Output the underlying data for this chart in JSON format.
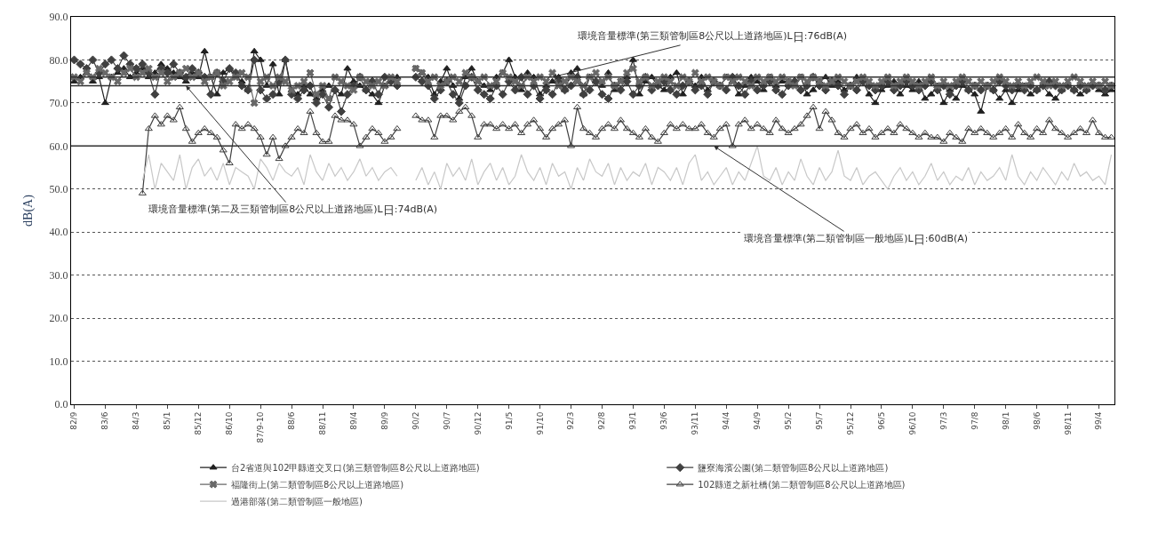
{
  "chart_data": {
    "type": "line",
    "ylabel": "dB(A)",
    "categories": [
      "82/9",
      null,
      null,
      null,
      null,
      "83/6",
      null,
      null,
      null,
      null,
      "84/3",
      null,
      null,
      null,
      null,
      "85/1",
      null,
      null,
      null,
      null,
      "85/12",
      null,
      null,
      null,
      null,
      "86/10",
      null,
      null,
      null,
      null,
      "87/9-10",
      null,
      null,
      null,
      null,
      "88/6",
      null,
      null,
      null,
      null,
      "88/11",
      null,
      null,
      null,
      null,
      "89/4",
      null,
      null,
      null,
      null,
      "89/9",
      null,
      null,
      null,
      null,
      "90/2",
      null,
      null,
      null,
      null,
      "90/7",
      null,
      null,
      null,
      null,
      "90/12",
      null,
      null,
      null,
      null,
      "91/5",
      null,
      null,
      null,
      null,
      "91/10",
      null,
      null,
      null,
      null,
      "92/3",
      null,
      null,
      null,
      null,
      "92/8",
      null,
      null,
      null,
      null,
      "93/1",
      null,
      null,
      null,
      null,
      "93/6",
      null,
      null,
      null,
      null,
      "93/11",
      null,
      null,
      null,
      null,
      "94/4",
      null,
      null,
      null,
      null,
      "94/9",
      null,
      null,
      null,
      null,
      "95/2",
      null,
      null,
      null,
      null,
      "95/7",
      null,
      null,
      null,
      null,
      "95/12",
      null,
      null,
      null,
      null,
      "96/5",
      null,
      null,
      null,
      null,
      "96/10",
      null,
      null,
      null,
      null,
      "97/3",
      null,
      null,
      null,
      null,
      "97/8",
      null,
      null,
      null,
      null,
      "98/1",
      null,
      null,
      null,
      null,
      "98/6",
      null,
      null,
      null,
      null,
      "98/11",
      null,
      null,
      null,
      null,
      "99/4",
      null,
      null
    ],
    "ylim": [
      0,
      90
    ],
    "yticks": [
      {
        "value": 0,
        "label": "0.0"
      },
      {
        "value": 10,
        "label": "10.0"
      },
      {
        "value": 20,
        "label": "20.0"
      },
      {
        "value": 30,
        "label": "30.0"
      },
      {
        "value": 40,
        "label": "40.0"
      },
      {
        "value": 50,
        "label": "50.0"
      },
      {
        "value": 60,
        "label": "60.0"
      },
      {
        "value": 70,
        "label": "70.0"
      },
      {
        "value": 80,
        "label": "80.0"
      },
      {
        "value": 90,
        "label": "90.0"
      }
    ],
    "grid": "y",
    "legend": "bottom",
    "series": [
      {
        "name": "台2省道與102甲縣道交叉口(第三類管制區8公尺以上道路地區)",
        "color": "#202020",
        "marker": "triangle",
        "values": [
          75,
          76,
          77,
          75,
          76,
          70,
          76,
          77,
          78,
          76,
          77,
          78,
          76,
          77,
          79,
          78,
          77,
          76,
          75,
          77,
          76,
          82,
          76,
          72,
          77,
          78,
          76,
          75,
          73,
          82,
          80,
          74,
          79,
          72,
          80,
          73,
          72,
          74,
          72,
          71,
          73,
          74,
          73,
          72,
          78,
          75,
          74,
          73,
          72,
          70,
          74,
          75,
          76,
          null,
          null,
          78,
          77,
          76,
          72,
          75,
          78,
          74,
          71,
          76,
          78,
          75,
          74,
          73,
          76,
          77,
          80,
          76,
          73,
          77,
          76,
          72,
          74,
          75,
          76,
          73,
          77,
          78,
          72,
          76,
          75,
          74,
          77,
          73,
          75,
          76,
          80,
          72,
          75,
          76,
          74,
          73,
          76,
          77,
          72,
          75,
          74,
          76,
          73,
          75,
          74,
          76,
          75,
          72,
          74,
          76,
          75,
          73,
          76,
          74,
          75,
          75,
          74,
          76,
          72,
          73,
          75,
          76,
          74,
          75,
          73,
          74,
          76,
          75,
          72,
          70,
          73,
          74,
          75,
          72,
          74,
          73,
          75,
          71,
          72,
          74,
          70,
          73,
          71,
          74,
          73,
          72,
          68,
          74,
          73,
          71,
          73,
          70,
          73,
          74,
          72,
          73,
          74,
          72,
          71,
          73,
          74,
          73,
          72,
          73,
          74,
          73,
          72,
          73
        ]
      },
      {
        "name": "鹽寮海濱公園(第二類管制區8公尺以上道路地區)",
        "color": "#404040",
        "marker": "diamond",
        "values": [
          80,
          79,
          78,
          80,
          77,
          79,
          80,
          78,
          81,
          79,
          78,
          79,
          77,
          72,
          78,
          77,
          79,
          77,
          76,
          78,
          77,
          76,
          72,
          77,
          75,
          78,
          77,
          74,
          73,
          80,
          73,
          71,
          72,
          75,
          80,
          72,
          71,
          73,
          74,
          70,
          72,
          69,
          73,
          68,
          72,
          74,
          76,
          73,
          75,
          72,
          76,
          75,
          74,
          null,
          null,
          76,
          75,
          74,
          71,
          73,
          75,
          72,
          70,
          74,
          76,
          73,
          72,
          71,
          74,
          72,
          75,
          73,
          76,
          72,
          74,
          71,
          73,
          72,
          75,
          73,
          74,
          76,
          72,
          73,
          75,
          72,
          71,
          74,
          73,
          75,
          72,
          74,
          76,
          73,
          74,
          75,
          73,
          72,
          74,
          75,
          73,
          74,
          72,
          75,
          74,
          73,
          76,
          74,
          72,
          75,
          73,
          74,
          75,
          73,
          72,
          74,
          75,
          73,
          74,
          76,
          74,
          73,
          75,
          74,
          72,
          74,
          73,
          75,
          74,
          73,
          74,
          75,
          73,
          74,
          75,
          74,
          73,
          74,
          75,
          73,
          74,
          72,
          74,
          75,
          73,
          74,
          73,
          74,
          73,
          75,
          74,
          73,
          74,
          73,
          74,
          73,
          74,
          75,
          74,
          73,
          74,
          73,
          74,
          73,
          74,
          74,
          73,
          74
        ]
      },
      {
        "name": "福隆街上(第二類管制區8公尺以上道路地區)",
        "color": "#686868",
        "marker": "cross",
        "values": [
          76,
          75,
          77,
          76,
          78,
          77,
          76,
          75,
          77,
          78,
          76,
          77,
          78,
          76,
          77,
          75,
          76,
          77,
          78,
          76,
          77,
          75,
          76,
          77,
          74,
          75,
          76,
          77,
          76,
          70,
          75,
          76,
          74,
          76,
          75,
          73,
          74,
          75,
          77,
          72,
          74,
          71,
          76,
          75,
          74,
          73,
          76,
          75,
          74,
          75,
          74,
          76,
          75,
          null,
          null,
          78,
          77,
          75,
          76,
          74,
          75,
          76,
          75,
          77,
          76,
          75,
          76,
          74,
          75,
          77,
          76,
          75,
          74,
          76,
          75,
          76,
          75,
          77,
          74,
          75,
          76,
          75,
          74,
          76,
          77,
          75,
          76,
          74,
          75,
          77,
          78,
          75,
          76,
          74,
          75,
          76,
          75,
          74,
          76,
          75,
          77,
          75,
          76,
          75,
          74,
          76,
          75,
          76,
          75,
          74,
          76,
          75,
          76,
          75,
          76,
          75,
          74,
          76,
          75,
          76,
          75,
          74,
          75,
          76,
          75,
          74,
          75,
          76,
          75,
          74,
          75,
          76,
          74,
          75,
          76,
          75,
          74,
          75,
          76,
          74,
          75,
          74,
          75,
          76,
          75,
          74,
          75,
          74,
          75,
          76,
          75,
          74,
          75,
          74,
          75,
          76,
          75,
          74,
          75,
          74,
          75,
          76,
          75,
          74,
          75,
          74,
          75,
          74
        ]
      },
      {
        "name": "102縣道之新社橋(第二類管制區8公尺以上道路地區)",
        "color": "#404040",
        "marker": "triangle-open",
        "values": [
          null,
          null,
          null,
          null,
          null,
          null,
          null,
          null,
          null,
          null,
          null,
          49,
          64,
          67,
          65,
          67,
          66,
          69,
          64,
          61,
          63,
          64,
          63,
          62,
          59,
          56,
          65,
          64,
          65,
          64,
          62,
          58,
          62,
          57,
          60,
          62,
          64,
          63,
          68,
          63,
          61,
          61,
          67,
          66,
          66,
          65,
          60,
          62,
          64,
          63,
          61,
          62,
          64,
          null,
          null,
          67,
          66,
          66,
          62,
          67,
          67,
          66,
          68,
          69,
          67,
          62,
          65,
          65,
          64,
          65,
          64,
          65,
          63,
          65,
          66,
          64,
          62,
          64,
          65,
          66,
          60,
          69,
          64,
          63,
          62,
          64,
          65,
          64,
          66,
          64,
          63,
          62,
          64,
          62,
          61,
          63,
          65,
          64,
          65,
          64,
          64,
          65,
          63,
          62,
          64,
          65,
          60,
          65,
          66,
          64,
          65,
          64,
          63,
          66,
          64,
          63,
          64,
          65,
          67,
          69,
          64,
          68,
          66,
          63,
          62,
          64,
          65,
          63,
          64,
          62,
          63,
          64,
          63,
          65,
          64,
          63,
          62,
          63,
          62,
          62,
          61,
          63,
          62,
          61,
          64,
          63,
          64,
          63,
          62,
          63,
          64,
          62,
          65,
          63,
          62,
          64,
          63,
          66,
          64,
          63,
          62,
          63,
          64,
          63,
          66,
          63,
          62,
          62
        ]
      },
      {
        "name": "過港部落(第二類管制區一般地區)",
        "color": "#c8c8c8",
        "marker": "none",
        "values": [
          null,
          null,
          null,
          null,
          null,
          null,
          null,
          null,
          null,
          null,
          null,
          52,
          58,
          50,
          56,
          54,
          52,
          58,
          50,
          55,
          57,
          53,
          55,
          52,
          56,
          51,
          55,
          54,
          53,
          50,
          57,
          55,
          52,
          56,
          54,
          53,
          55,
          51,
          58,
          54,
          52,
          56,
          53,
          55,
          52,
          54,
          57,
          53,
          55,
          52,
          54,
          55,
          53,
          null,
          null,
          52,
          55,
          51,
          54,
          50,
          56,
          53,
          55,
          52,
          57,
          51,
          54,
          56,
          52,
          55,
          51,
          53,
          58,
          54,
          52,
          55,
          51,
          56,
          53,
          54,
          50,
          55,
          52,
          57,
          54,
          53,
          56,
          51,
          55,
          52,
          54,
          53,
          56,
          51,
          55,
          54,
          52,
          55,
          51,
          56,
          58,
          52,
          54,
          51,
          53,
          55,
          51,
          54,
          52,
          56,
          60,
          53,
          52,
          55,
          51,
          54,
          52,
          57,
          53,
          51,
          55,
          52,
          54,
          59,
          53,
          52,
          55,
          51,
          53,
          54,
          52,
          50,
          53,
          55,
          52,
          54,
          51,
          53,
          56,
          52,
          54,
          51,
          53,
          52,
          55,
          51,
          54,
          52,
          53,
          55,
          52,
          58,
          53,
          51,
          54,
          52,
          55,
          53,
          51,
          54,
          52,
          56,
          53,
          54,
          52,
          53,
          51,
          58
        ]
      }
    ],
    "ref_lines": [
      {
        "axis": "y",
        "value": 76,
        "color": "#303030",
        "label": "環境音量標準(第三類管制區8公尺以上道路地區)L$_{日}$:76dB(A)"
      },
      {
        "axis": "y",
        "value": 74,
        "color": "#303030",
        "label": "環境音量標準(第二及三類管制區8公尺以上道路地區)L$_{日}$:74dB(A)"
      },
      {
        "axis": "y",
        "value": 60,
        "color": "#303030",
        "label": "環境音量標準(第二類管制區一般地區)L$_{日}$:60dB(A)"
      }
    ]
  }
}
